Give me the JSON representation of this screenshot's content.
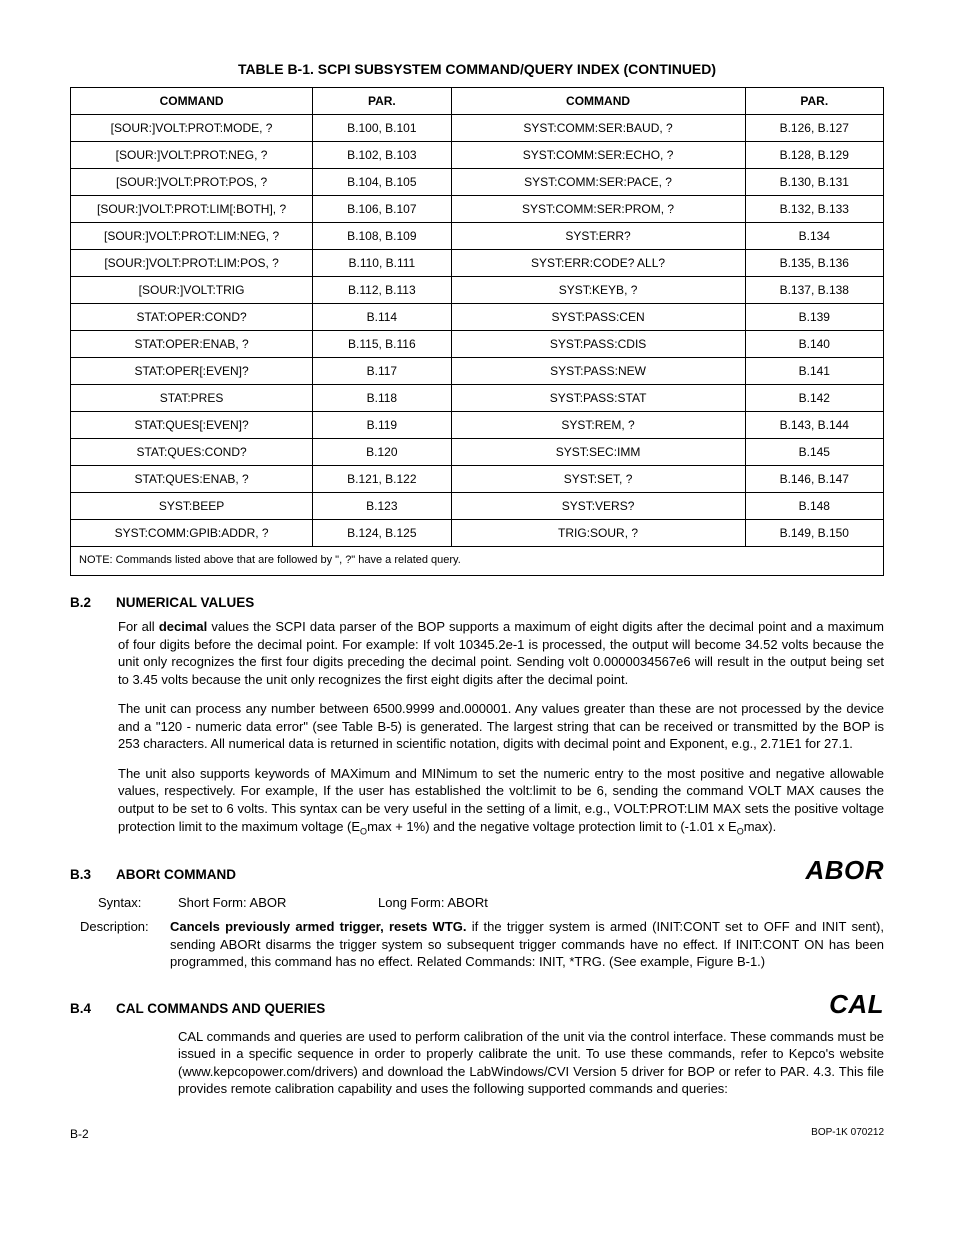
{
  "table": {
    "title": "TABLE B-1.  SCPI SUBSYSTEM COMMAND/QUERY INDEX (CONTINUED)",
    "headers": [
      "COMMAND",
      "PAR.",
      "COMMAND",
      "PAR."
    ],
    "col_widths_pct": [
      28,
      16,
      34,
      16
    ],
    "rows": [
      [
        "[SOUR:]VOLT:PROT:MODE, ?",
        "B.100, B.101",
        "SYST:COMM:SER:BAUD, ?",
        "B.126, B.127"
      ],
      [
        "[SOUR:]VOLT:PROT:NEG, ?",
        "B.102, B.103",
        "SYST:COMM:SER:ECHO, ?",
        "B.128, B.129"
      ],
      [
        "[SOUR:]VOLT:PROT:POS, ?",
        "B.104, B.105",
        "SYST:COMM:SER:PACE, ?",
        "B.130, B.131"
      ],
      [
        "[SOUR:]VOLT:PROT:LIM[:BOTH], ?",
        "B.106, B.107",
        "SYST:COMM:SER:PROM, ?",
        "B.132, B.133"
      ],
      [
        "[SOUR:]VOLT:PROT:LIM:NEG, ?",
        "B.108, B.109",
        "SYST:ERR?",
        "B.134"
      ],
      [
        "[SOUR:]VOLT:PROT:LIM:POS, ?",
        "B.110, B.111",
        "SYST:ERR:CODE? ALL?",
        "B.135, B.136"
      ],
      [
        "[SOUR:]VOLT:TRIG",
        "B.112, B.113",
        "SYST:KEYB, ?",
        "B.137, B.138"
      ],
      [
        "STAT:OPER:COND?",
        "B.114",
        "SYST:PASS:CEN",
        "B.139"
      ],
      [
        "STAT:OPER:ENAB, ?",
        "B.115, B.116",
        "SYST:PASS:CDIS",
        "B.140"
      ],
      [
        "STAT:OPER[:EVEN]?",
        "B.117",
        "SYST:PASS:NEW",
        "B.141"
      ],
      [
        "STAT:PRES",
        "B.118",
        "SYST:PASS:STAT",
        "B.142"
      ],
      [
        "STAT:QUES[:EVEN]?",
        "B.119",
        "SYST:REM, ?",
        "B.143, B.144"
      ],
      [
        "STAT:QUES:COND?",
        "B.120",
        "SYST:SEC:IMM",
        "B.145"
      ],
      [
        "STAT:QUES:ENAB, ?",
        "B.121, B.122",
        "SYST:SET, ?",
        "B.146, B.147"
      ],
      [
        "SYST:BEEP",
        "B.123",
        "SYST:VERS?",
        "B.148"
      ],
      [
        "SYST:COMM:GPIB:ADDR, ?",
        "B.124, B.125",
        "TRIG:SOUR, ?",
        "B.149, B.150"
      ]
    ],
    "note": "NOTE: Commands listed above that are followed by \", ?\" have a related query."
  },
  "sections": {
    "b2": {
      "num": "B.2",
      "title": "NUMERICAL VALUES",
      "p1_a": "For all ",
      "p1_b": "decimal",
      "p1_c": " values the SCPI data parser of the BOP supports a maximum of eight digits after the decimal point and a maximum of four digits before the decimal point. For example: If volt 10345.2e-1 is processed, the output will become 34.52 volts because the unit only recognizes the first four digits preceding the decimal point. Sending volt 0.0000034567e6 will result in the output being set to 3.45 volts because the unit only recognizes the first eight digits after the decimal point.",
      "p2": "The unit can process any number between 6500.9999 and.000001. Any values greater than these are not processed by the device and a \"120 - numeric data error\" (see Table B-5) is generated. The largest string that can be received or transmitted by the BOP is 253 characters. All numerical data is returned in scientific notation, digits with decimal point and Exponent, e.g., 2.71E1 for 27.1.",
      "p3_a": "The unit also supports keywords of MAXimum and MINimum to set the numeric entry to the most positive and negative allowable values, respectively. For example, If the user has established the volt:limit to be 6, sending the command VOLT MAX causes the output to be set to 6 volts. This syntax can be very useful in the setting of a limit, e.g., VOLT:PROT:LIM MAX sets the positive voltage protection limit to the maximum voltage (E",
      "p3_b": "max + 1%) and the negative voltage protection limit to (-1.01 x E",
      "p3_c": "max).",
      "sub": "O"
    },
    "b3": {
      "num": "B.3",
      "title": "ABORt COMMAND",
      "tag": "ABOR",
      "syntax_label": "Syntax:",
      "short_form": "Short Form: ABOR",
      "long_form": "Long Form: ABORt",
      "desc_label": "Description:",
      "desc_bold": "Cancels previously armed trigger, resets WTG.",
      "desc_rest": " if the trigger system is armed (INIT:CONT set to OFF and INIT sent), sending ABORt disarms the trigger system so subsequent trigger commands have no effect. If INIT:CONT ON has been programmed, this command has no effect. Related Commands: INIT, *TRG. (See example, Figure B-1.)"
    },
    "b4": {
      "num": "B.4",
      "title": "CAL COMMANDS AND QUERIES",
      "tag": "CAL",
      "p1": "CAL commands and queries are used to perform calibration of the unit via the control interface. These commands must be issued in a specific sequence in order to properly calibrate the unit. To use these commands, refer to Kepco's website (www.kepcopower.com/drivers) and download the LabWindows/CVI Version 5 driver for BOP or refer to PAR. 4.3. This file provides remote calibration capability and uses the following supported commands and queries:"
    }
  },
  "footer": {
    "left": "B-2",
    "right": "BOP-1K 070212"
  },
  "colors": {
    "text": "#000000",
    "background": "#ffffff",
    "border": "#000000"
  }
}
